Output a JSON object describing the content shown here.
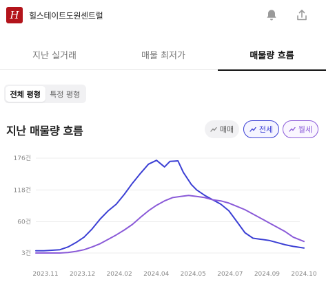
{
  "header": {
    "logo_letter": "H",
    "site_title": "힐스테이트도원센트럴",
    "icons": [
      "bell-icon",
      "share-icon"
    ]
  },
  "tabs": [
    {
      "label": "지난 실거래",
      "active": false
    },
    {
      "label": "매물 최저가",
      "active": false
    },
    {
      "label": "매물량 흐름",
      "active": true
    }
  ],
  "size_filter": [
    {
      "label": "전체 평형",
      "active": true
    },
    {
      "label": "특정 평형",
      "active": false
    }
  ],
  "section": {
    "title": "지난 매물량 흐름"
  },
  "series_chips": [
    {
      "label": "매매",
      "icon": "trend-icon",
      "color": "#888888",
      "active": false
    },
    {
      "label": "전세",
      "icon": "trend-icon",
      "color": "#3b3fd4",
      "active": true
    },
    {
      "label": "월세",
      "icon": "trend-icon",
      "color": "#8a5ad8",
      "active": true
    }
  ],
  "chart_data": {
    "type": "line",
    "y_tick_labels": [
      "176건",
      "118건",
      "60건",
      "3건"
    ],
    "y_ticks": [
      176,
      118,
      60,
      3
    ],
    "ylim": [
      3,
      176
    ],
    "x_tick_labels": [
      "2023.11",
      "2023.12",
      "2024.02",
      "2024.04",
      "2024.05",
      "2024.07",
      "2024.09",
      "2024.10"
    ],
    "grid": true,
    "series": [
      {
        "name": "전세",
        "color": "#3b3fd4",
        "x": [
          0,
          0.03,
          0.06,
          0.09,
          0.12,
          0.15,
          0.18,
          0.21,
          0.24,
          0.27,
          0.3,
          0.33,
          0.36,
          0.39,
          0.42,
          0.45,
          0.48,
          0.5,
          0.53,
          0.55,
          0.58,
          0.6,
          0.63,
          0.66,
          0.69,
          0.72,
          0.75,
          0.78,
          0.81,
          0.84,
          0.87,
          0.9,
          0.93,
          0.96,
          1.0
        ],
        "values": [
          7,
          7,
          8,
          9,
          14,
          22,
          32,
          47,
          65,
          80,
          92,
          110,
          130,
          148,
          165,
          172,
          160,
          170,
          171,
          150,
          128,
          118,
          108,
          100,
          92,
          80,
          60,
          40,
          30,
          28,
          26,
          22,
          18,
          15,
          12
        ]
      },
      {
        "name": "월세",
        "color": "#8a5ad8",
        "x": [
          0,
          0.03,
          0.06,
          0.09,
          0.12,
          0.15,
          0.18,
          0.21,
          0.24,
          0.27,
          0.3,
          0.33,
          0.36,
          0.39,
          0.42,
          0.45,
          0.48,
          0.51,
          0.54,
          0.57,
          0.6,
          0.63,
          0.66,
          0.69,
          0.72,
          0.75,
          0.78,
          0.81,
          0.84,
          0.87,
          0.9,
          0.93,
          0.96,
          1.0
        ],
        "values": [
          3,
          3,
          3,
          3,
          4,
          6,
          9,
          14,
          20,
          28,
          36,
          45,
          55,
          68,
          80,
          90,
          98,
          104,
          106,
          108,
          106,
          104,
          100,
          98,
          94,
          88,
          82,
          74,
          66,
          58,
          50,
          42,
          32,
          24
        ]
      }
    ]
  }
}
